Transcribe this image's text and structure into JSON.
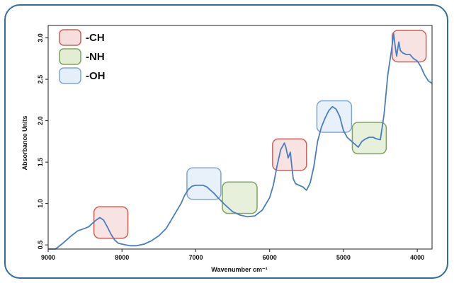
{
  "colors": {
    "frame": "#2f6f9f",
    "line": "#4a7ec2",
    "ch_fill": "#f7dede",
    "ch_stroke": "#c9605a",
    "nh_fill": "#e2edd3",
    "nh_stroke": "#7fa35a",
    "oh_fill": "#e4eff9",
    "oh_stroke": "#7fa6cf"
  },
  "chart_data": {
    "type": "line",
    "title": "",
    "xlabel": "Wavenumber cm⁻¹",
    "ylabel": "Absorbance Units",
    "xlim": [
      9000,
      3800
    ],
    "ylim": [
      0.45,
      3.15
    ],
    "x_reversed": true,
    "xticks": [
      9000,
      8000,
      7000,
      6000,
      5000,
      4000
    ],
    "xtick_labels": [
      "9000",
      "8000",
      "7000",
      "6000",
      "5000",
      "4000"
    ],
    "yticks": [
      0.5,
      1.0,
      1.5,
      2.0,
      2.5,
      3.0
    ],
    "ytick_labels": [
      "0.5",
      "1.0",
      "1.5",
      "2.0",
      "2.5",
      "3.0"
    ],
    "grid": false,
    "legend": {
      "position": "top-left",
      "entries": [
        {
          "label": "-CH",
          "color": "ch"
        },
        {
          "label": "-NH",
          "color": "nh"
        },
        {
          "label": "-OH",
          "color": "oh"
        }
      ]
    },
    "series": [
      {
        "x": [
          9000,
          8900,
          8800,
          8700,
          8600,
          8500,
          8450,
          8400,
          8350,
          8300,
          8250,
          8200,
          8150,
          8100,
          8050,
          8000,
          7900,
          7800,
          7700,
          7600,
          7500,
          7400,
          7300,
          7200,
          7150,
          7100,
          7050,
          7000,
          6950,
          6900,
          6850,
          6800,
          6750,
          6700,
          6600,
          6500,
          6400,
          6300,
          6200,
          6100,
          6000,
          5950,
          5900,
          5850,
          5800,
          5780,
          5750,
          5720,
          5700,
          5680,
          5650,
          5600,
          5550,
          5500,
          5450,
          5400,
          5350,
          5300,
          5250,
          5200,
          5150,
          5100,
          5050,
          5000,
          4950,
          4900,
          4850,
          4800,
          4750,
          4700,
          4650,
          4600,
          4550,
          4500,
          4450,
          4400,
          4350,
          4320,
          4300,
          4280,
          4250,
          4230,
          4200,
          4150,
          4100,
          4050,
          4000,
          3950,
          3900,
          3850,
          3800
        ],
        "y": [
          0.42,
          0.45,
          0.52,
          0.6,
          0.67,
          0.7,
          0.72,
          0.76,
          0.8,
          0.83,
          0.8,
          0.72,
          0.63,
          0.56,
          0.52,
          0.51,
          0.49,
          0.49,
          0.51,
          0.55,
          0.61,
          0.7,
          0.85,
          1.0,
          1.1,
          1.17,
          1.21,
          1.22,
          1.22,
          1.22,
          1.2,
          1.16,
          1.12,
          1.07,
          0.98,
          0.9,
          0.86,
          0.84,
          0.85,
          0.92,
          1.07,
          1.22,
          1.45,
          1.65,
          1.73,
          1.68,
          1.55,
          1.62,
          1.45,
          1.3,
          1.24,
          1.22,
          1.2,
          1.16,
          1.25,
          1.45,
          1.75,
          1.92,
          2.03,
          2.12,
          2.17,
          2.14,
          2.05,
          1.88,
          1.8,
          1.76,
          1.72,
          1.68,
          1.75,
          1.78,
          1.8,
          1.8,
          1.78,
          1.77,
          2.08,
          2.55,
          2.85,
          3.05,
          2.9,
          2.78,
          2.95,
          2.85,
          2.82,
          2.8,
          2.8,
          2.75,
          2.72,
          2.65,
          2.55,
          2.48,
          2.45
        ]
      }
    ],
    "annotations": [
      {
        "type": "ch",
        "x_from": 8380,
        "x_to": 7920,
        "y_from": 0.58,
        "y_to": 0.96
      },
      {
        "type": "oh",
        "x_from": 7120,
        "x_to": 6660,
        "y_from": 1.05,
        "y_to": 1.43
      },
      {
        "type": "nh",
        "x_from": 6640,
        "x_to": 6170,
        "y_from": 0.88,
        "y_to": 1.26
      },
      {
        "type": "ch",
        "x_from": 5960,
        "x_to": 5500,
        "y_from": 1.4,
        "y_to": 1.78
      },
      {
        "type": "oh",
        "x_from": 5360,
        "x_to": 4890,
        "y_from": 1.86,
        "y_to": 2.24
      },
      {
        "type": "nh",
        "x_from": 4880,
        "x_to": 4420,
        "y_from": 1.6,
        "y_to": 1.98
      },
      {
        "type": "ch",
        "x_from": 4340,
        "x_to": 3880,
        "y_from": 2.71,
        "y_to": 3.09
      }
    ]
  }
}
